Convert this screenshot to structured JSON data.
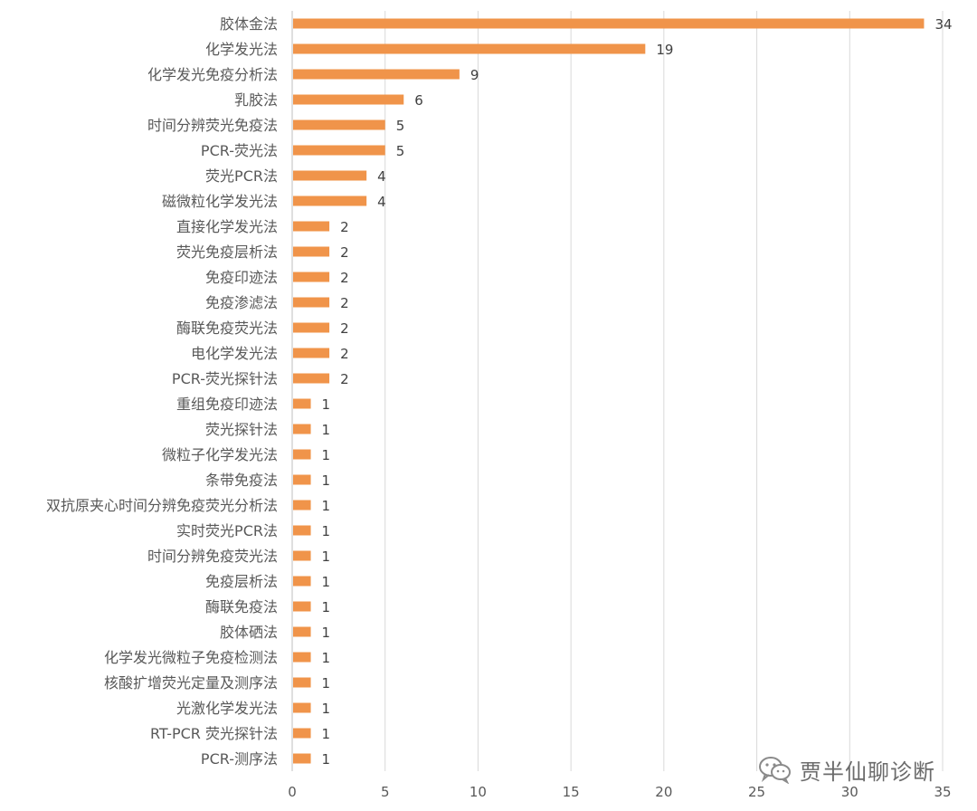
{
  "chart_data": {
    "type": "bar",
    "orientation": "horizontal",
    "categories": [
      "胶体金法",
      "化学发光法",
      "化学发光免疫分析法",
      "乳胶法",
      "时间分辨荧光免疫法",
      "PCR-荧光法",
      "荧光PCR法",
      "磁微粒化学发光法",
      "直接化学发光法",
      "荧光免疫层析法",
      "免疫印迹法",
      "免疫渗滤法",
      "酶联免疫荧光法",
      "电化学发光法",
      "PCR-荧光探针法",
      "重组免疫印迹法",
      "荧光探针法",
      "微粒子化学发光法",
      "条带免疫法",
      "双抗原夹心时间分辨免疫荧光分析法",
      "实时荧光PCR法",
      "时间分辨免疫荧光法",
      "免疫层析法",
      "酶联免疫法",
      "胶体硒法",
      "化学发光微粒子免疫检测法",
      "核酸扩增荧光定量及测序法",
      "光激化学发光法",
      "RT-PCR 荧光探针法",
      "PCR-测序法"
    ],
    "values": [
      34,
      19,
      9,
      6,
      5,
      5,
      4,
      4,
      2,
      2,
      2,
      2,
      2,
      2,
      2,
      1,
      1,
      1,
      1,
      1,
      1,
      1,
      1,
      1,
      1,
      1,
      1,
      1,
      1,
      1
    ],
    "xlim": [
      0,
      35
    ],
    "xticks": [
      "0",
      "5",
      "10",
      "15",
      "20",
      "25",
      "30",
      "35"
    ],
    "grid": true,
    "data_labels": true,
    "legend": "none",
    "bar_color": "#F0944A"
  },
  "watermark": {
    "text": "贾半仙聊诊断",
    "icon": "wechat-icon"
  },
  "colors": {
    "bar": "#F0944A",
    "grid": "#D9D9D9",
    "axis": "#BFBFBF",
    "text": "#595959"
  }
}
